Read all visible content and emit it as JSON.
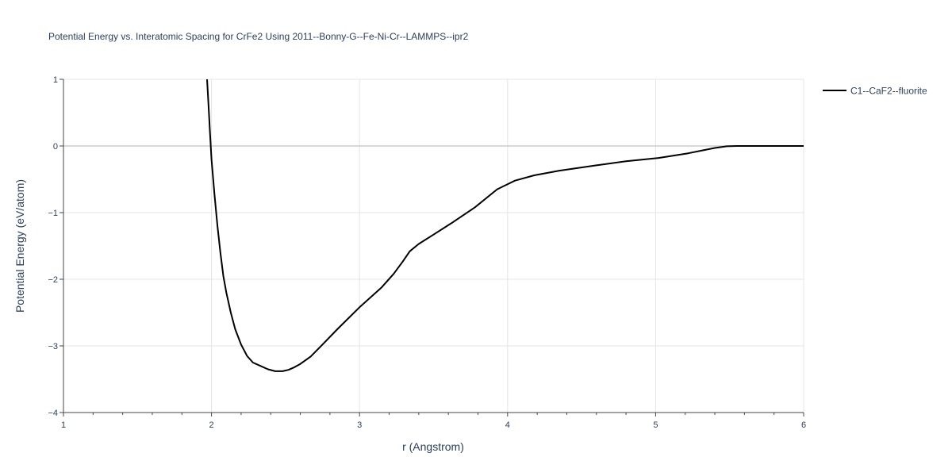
{
  "chart_data": {
    "type": "line",
    "title": "Potential Energy vs. Interatomic Spacing for CrFe2 Using 2011--Bonny-G--Fe-Ni-Cr--LAMMPS--ipr2",
    "xlabel": "r (Angstrom)",
    "ylabel": "Potential Energy (eV/atom)",
    "xlim": [
      1,
      6
    ],
    "ylim": [
      -4,
      1
    ],
    "x_ticks": [
      1,
      2,
      3,
      4,
      5,
      6
    ],
    "x_tick_labels": [
      "1",
      "2",
      "3",
      "4",
      "5",
      "6"
    ],
    "y_ticks": [
      1,
      0,
      -1,
      -2,
      -3,
      -4
    ],
    "y_tick_labels": [
      "1",
      "0",
      "−1",
      "−2",
      "−3",
      "−4"
    ],
    "grid": true,
    "legend_position": "top-right",
    "series": [
      {
        "name": "C1--CaF2--fluorite",
        "color": "#000000",
        "x": [
          1.97,
          1.98,
          1.99,
          2.0,
          2.02,
          2.04,
          2.06,
          2.08,
          2.1,
          2.13,
          2.16,
          2.2,
          2.24,
          2.28,
          2.33,
          2.38,
          2.43,
          2.48,
          2.52,
          2.56,
          2.6,
          2.67,
          2.75,
          2.85,
          3.0,
          3.15,
          3.23,
          3.29,
          3.34,
          3.4,
          3.5,
          3.62,
          3.78,
          3.93,
          4.05,
          4.18,
          4.35,
          4.6,
          4.8,
          5.02,
          5.22,
          5.4,
          5.48,
          5.55,
          5.7,
          6.0
        ],
        "y": [
          1.0,
          0.6,
          0.2,
          -0.2,
          -0.72,
          -1.2,
          -1.6,
          -1.95,
          -2.2,
          -2.5,
          -2.75,
          -2.98,
          -3.15,
          -3.25,
          -3.3,
          -3.35,
          -3.38,
          -3.38,
          -3.36,
          -3.32,
          -3.27,
          -3.16,
          -2.98,
          -2.75,
          -2.42,
          -2.12,
          -1.92,
          -1.74,
          -1.58,
          -1.47,
          -1.33,
          -1.16,
          -0.92,
          -0.65,
          -0.52,
          -0.44,
          -0.37,
          -0.29,
          -0.23,
          -0.18,
          -0.11,
          -0.03,
          -0.005,
          0.0,
          0.0,
          0.0
        ]
      }
    ]
  }
}
